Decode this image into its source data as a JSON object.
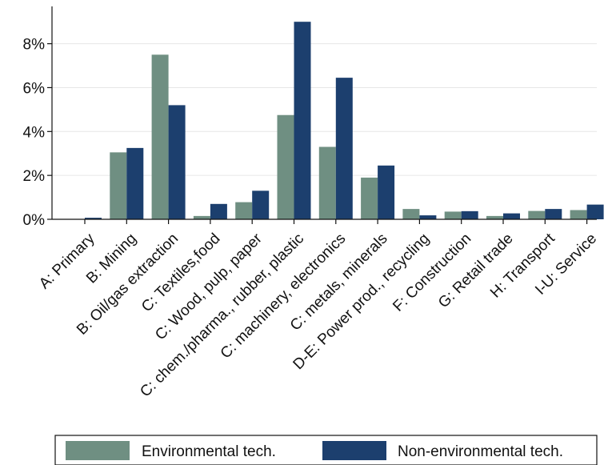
{
  "chart_data": {
    "type": "bar",
    "categories": [
      "A: Primary",
      "B: Mining",
      "B: Oil/gas extraction",
      "C: Textiles,food",
      "C: Wood, pulp, paper",
      "C: chem./pharma., rubber, plastic",
      "C: machinery, electronics",
      "C: metals, minerals",
      "D-E: Power prod., recycling",
      "F: Construction",
      "G: Retail trade",
      "H: Transport",
      "I-U: Service"
    ],
    "series": [
      {
        "name": "Environmental tech.",
        "color": "#6f8f82",
        "values": [
          0.0,
          3.05,
          7.5,
          0.15,
          0.78,
          4.75,
          3.3,
          1.9,
          0.47,
          0.35,
          0.15,
          0.38,
          0.42
        ]
      },
      {
        "name": "Non-environmental tech.",
        "color": "#1c3f6e",
        "values": [
          0.07,
          3.25,
          5.2,
          0.7,
          1.3,
          9.0,
          6.45,
          2.45,
          0.18,
          0.37,
          0.27,
          0.47,
          0.67
        ]
      }
    ],
    "yticks": [
      "0%",
      "2%",
      "4%",
      "6%",
      "8%"
    ],
    "ytick_values": [
      0,
      2,
      4,
      6,
      8
    ],
    "ylim": [
      0,
      9.7
    ],
    "grid": true,
    "legend_position": "bottom",
    "title": "",
    "xlabel": "",
    "ylabel": ""
  }
}
